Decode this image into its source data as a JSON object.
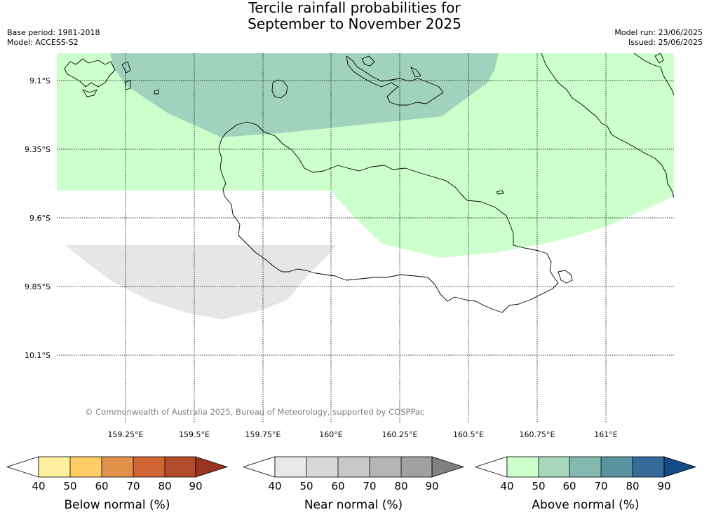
{
  "title": {
    "line1": "Tercile rainfall probabilities for",
    "line2": "September to November 2025"
  },
  "meta_left": {
    "base_period": "Base period: 1981-2018",
    "model": "Model: ACCESS-S2"
  },
  "meta_right": {
    "model_run": "Model run: 23/06/2025",
    "issued": "Issued: 25/06/2025"
  },
  "map": {
    "lat_labels": [
      "9.1°S",
      "9.35°S",
      "9.6°S",
      "9.85°S",
      "10.1°S"
    ],
    "lon_labels": [
      "159.25°E",
      "159.5°E",
      "159.75°E",
      "160°E",
      "160.25°E",
      "160.5°E",
      "160.75°E",
      "161°E"
    ],
    "copyright": "© Commonwealth of Australia 2025, Bureau of Meteorology, supported by COSPPac",
    "regions": [
      {
        "name": "above-normal-50-60",
        "category": "Above normal",
        "band": "50-60",
        "color": "#a0d2bd"
      },
      {
        "name": "above-normal-40-50",
        "category": "Above normal",
        "band": "40-50",
        "color": "#ccffcc"
      },
      {
        "name": "near-normal-40-50",
        "category": "Near normal",
        "band": "40-50",
        "color": "#e6e6e6"
      }
    ]
  },
  "colorbars": [
    {
      "label": "Below normal (%)",
      "ticks": [
        "40",
        "50",
        "60",
        "70",
        "80",
        "90"
      ],
      "colors": [
        "#fff0a0",
        "#ffcc66",
        "#e0924a",
        "#cf6435",
        "#b24b2a",
        "#983520"
      ]
    },
    {
      "label": "Near normal (%)",
      "ticks": [
        "40",
        "50",
        "60",
        "70",
        "80",
        "90"
      ],
      "colors": [
        "#e8e8e8",
        "#d8d8d8",
        "#c8c8c8",
        "#b4b4b4",
        "#a0a0a0",
        "#808080"
      ]
    },
    {
      "label": "Above normal (%)",
      "ticks": [
        "40",
        "50",
        "60",
        "70",
        "80",
        "90"
      ],
      "colors": [
        "#ccffcc",
        "#a8d8bc",
        "#82b8ae",
        "#5a93a0",
        "#356a99",
        "#144a86"
      ]
    }
  ]
}
